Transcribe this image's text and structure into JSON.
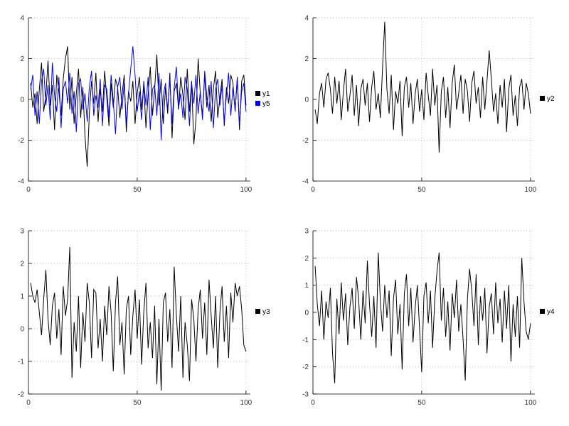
{
  "page": {
    "background": "#ffffff",
    "grid_color": "#bbbbbb",
    "axis_color": "#000000",
    "tick_label_color": "#333333"
  },
  "chart_data": [
    {
      "type": "line",
      "position": "top-left",
      "title": "",
      "xlabel": "",
      "ylabel": "",
      "x_start": 1,
      "x_range": [
        0,
        102
      ],
      "ylim": [
        -4,
        4
      ],
      "x_ticks": [
        0,
        50,
        100
      ],
      "y_ticks": [
        -4,
        -2,
        0,
        2,
        4
      ],
      "grid": true,
      "legend_position": "right",
      "series": [
        {
          "name": "y1",
          "color": "#000000",
          "values": [
            0.8,
            -0.4,
            0.3,
            -1.2,
            0.5,
            1.8,
            -0.6,
            0.2,
            1.9,
            -0.3,
            0.7,
            -1.5,
            1.2,
            0.4,
            -0.8,
            1.0,
            2.0,
            2.6,
            -0.5,
            1.1,
            -1.2,
            0.3,
            1.5,
            -0.9,
            0.6,
            -1.8,
            -3.3,
            -0.7,
            0.9,
            -0.2,
            1.3,
            -1.1,
            0.5,
            -0.6,
            1.4,
            0.1,
            -1.3,
            0.8,
            -0.4,
            1.0,
            0.6,
            -0.9,
            0.2,
            1.2,
            -1.6,
            0.4,
            -0.1,
            0.9,
            -1.2,
            0.3,
            1.1,
            -0.5,
            0.7,
            -1.4,
            0.2,
            1.6,
            -0.8,
            0.5,
            2.2,
            -0.3,
            1.0,
            -1.2,
            0.6,
            -0.7,
            1.3,
            -1.9,
            0.4,
            0.8,
            -0.5,
            1.1,
            0.2,
            -1.0,
            1.5,
            -0.6,
            0.9,
            -2.2,
            -1.0,
            2.0,
            0.3,
            -0.8,
            1.2,
            -0.4,
            0.7,
            -1.1,
            0.5,
            1.4,
            -0.9,
            0.1,
            1.0,
            -1.3,
            0.6,
            -0.2,
            1.2,
            0.8,
            -0.6,
            1.1,
            -1.5,
            0.9,
            1.2,
            -0.3
          ]
        },
        {
          "name": "y5",
          "color": "#0000ff",
          "values": [
            0.5,
            1.2,
            -0.8,
            0.4,
            -1.2,
            0.9,
            1.5,
            -0.3,
            0.7,
            -1.0,
            1.8,
            0.2,
            -0.6,
            1.1,
            -1.4,
            0.5,
            0.9,
            -0.2,
            1.3,
            -0.7,
            0.4,
            -1.6,
            0.8,
            1.0,
            -0.5,
            0.3,
            -1.1,
            0.6,
            1.4,
            -0.8,
            0.2,
            -0.4,
            1.0,
            -1.3,
            0.7,
            0.5,
            -0.9,
            1.2,
            -0.1,
            -1.7,
            0.6,
            1.1,
            -0.5,
            0.8,
            -1.2,
            0.3,
            1.5,
            2.6,
            1.2,
            -0.6,
            0.4,
            -1.0,
            0.9,
            -0.3,
            1.1,
            -1.5,
            0.5,
            0.7,
            -0.8,
            1.3,
            -2.0,
            0.2,
            0.8,
            -0.5,
            1.0,
            -1.2,
            0.6,
            1.6,
            -0.4,
            0.3,
            -0.9,
            1.1,
            0.5,
            -1.3,
            0.8,
            -0.2,
            1.2,
            -0.7,
            0.4,
            -1.0,
            1.4,
            0.1,
            -0.6,
            0.9,
            -1.4,
            0.5,
            1.0,
            -0.3,
            0.7,
            -1.1,
            0.2,
            1.3,
            -0.8,
            0.6,
            -0.5,
            1.0,
            -1.2,
            0.4,
            0.8,
            -0.6
          ]
        }
      ]
    },
    {
      "type": "line",
      "position": "top-right",
      "title": "",
      "xlabel": "",
      "ylabel": "",
      "x_start": 1,
      "x_range": [
        0,
        102
      ],
      "ylim": [
        -4,
        4
      ],
      "x_ticks": [
        0,
        50,
        100
      ],
      "y_ticks": [
        -4,
        -2,
        0,
        2,
        4
      ],
      "grid": true,
      "legend_position": "right",
      "series": [
        {
          "name": "y2",
          "color": "#000000",
          "values": [
            -0.5,
            -1.2,
            0.3,
            0.8,
            -0.4,
            1.0,
            1.3,
            0.5,
            -0.7,
            1.1,
            -0.2,
            0.9,
            -1.0,
            0.4,
            1.5,
            -0.6,
            0.2,
            1.2,
            -0.8,
            0.7,
            -1.3,
            0.5,
            1.0,
            -0.3,
            0.8,
            -1.1,
            0.6,
            1.4,
            -0.5,
            0.3,
            -0.9,
            1.6,
            3.8,
            0.5,
            -0.7,
            1.2,
            -1.5,
            0.4,
            -0.2,
            0.9,
            -1.8,
            0.6,
            1.1,
            -0.4,
            0.8,
            -1.2,
            0.3,
            1.0,
            -0.6,
            0.5,
            -1.0,
            1.3,
            0.2,
            -0.8,
            1.5,
            -0.3,
            0.7,
            -2.6,
            0.4,
            1.1,
            -0.9,
            0.6,
            -1.4,
            0.8,
            1.7,
            -0.5,
            0.3,
            1.2,
            -0.7,
            1.0,
            0.4,
            -1.1,
            0.8,
            1.4,
            -0.2,
            0.6,
            -0.9,
            1.1,
            -0.5,
            0.9,
            2.4,
            1.0,
            -0.6,
            0.3,
            -1.2,
            0.7,
            -0.4,
            1.0,
            -1.6,
            0.5,
            1.2,
            -0.8,
            0.2,
            -1.3,
            0.6,
            1.0,
            -0.5,
            0.8,
            0.3,
            -0.7
          ]
        }
      ]
    },
    {
      "type": "line",
      "position": "bottom-left",
      "title": "",
      "xlabel": "",
      "ylabel": "",
      "x_start": 1,
      "x_range": [
        0,
        102
      ],
      "ylim": [
        -2,
        3
      ],
      "x_ticks": [
        0,
        50,
        100
      ],
      "y_ticks": [
        -2,
        -1,
        0,
        1,
        2,
        3
      ],
      "grid": true,
      "legend_position": "right",
      "series": [
        {
          "name": "y3",
          "color": "#000000",
          "values": [
            1.4,
            1.0,
            0.8,
            1.2,
            0.5,
            -0.2,
            0.9,
            1.8,
            0.3,
            -0.5,
            0.7,
            1.1,
            -0.3,
            0.6,
            -0.8,
            1.3,
            0.4,
            0.9,
            2.5,
            -1.5,
            0.2,
            -0.7,
            1.0,
            -1.2,
            0.5,
            -0.4,
            1.4,
            0.8,
            -0.9,
            1.2,
            1.1,
            -0.6,
            0.3,
            -1.0,
            0.7,
            -0.2,
            1.3,
            0.5,
            -1.3,
            0.8,
            1.6,
            -0.5,
            0.2,
            -1.4,
            0.6,
            1.0,
            -0.8,
            0.4,
            1.2,
            -0.3,
            0.9,
            -1.1,
            0.5,
            1.4,
            -0.6,
            0.2,
            -0.9,
            0.7,
            -1.7,
            0.3,
            -1.9,
            0.8,
            1.1,
            -0.4,
            0.6,
            -1.2,
            1.9,
            0.4,
            -0.7,
            1.0,
            -1.5,
            0.2,
            -0.5,
            -1.6,
            0.9,
            0.3,
            -1.0,
            0.6,
            1.2,
            -0.3,
            0.8,
            -0.8,
            1.5,
            0.4,
            -0.6,
            1.0,
            -1.2,
            0.5,
            1.3,
            -0.4,
            0.7,
            -0.9,
            1.1,
            0.2,
            1.4,
            1.0,
            1.3,
            0.6,
            -0.5,
            -0.7
          ]
        }
      ]
    },
    {
      "type": "line",
      "position": "bottom-right",
      "title": "",
      "xlabel": "",
      "ylabel": "",
      "x_start": 1,
      "x_range": [
        0,
        102
      ],
      "ylim": [
        -3,
        3
      ],
      "x_ticks": [
        0,
        50,
        100
      ],
      "y_ticks": [
        -3,
        -2,
        -1,
        0,
        1,
        2,
        3
      ],
      "grid": true,
      "legend_position": "right",
      "series": [
        {
          "name": "y4",
          "color": "#000000",
          "values": [
            1.7,
            0.3,
            -0.5,
            0.8,
            -1.0,
            0.4,
            -0.2,
            0.9,
            -1.5,
            -2.6,
            0.5,
            -0.8,
            1.1,
            -0.3,
            0.7,
            -1.2,
            0.2,
            0.9,
            -0.6,
            1.3,
            0.5,
            -1.0,
            0.8,
            -0.4,
            1.9,
            0.3,
            -0.9,
            0.6,
            -1.3,
            2.2,
            0.4,
            -0.7,
            1.0,
            -0.2,
            0.8,
            -1.6,
            0.5,
            1.2,
            -0.8,
            0.3,
            -2.1,
            0.7,
            1.4,
            -0.5,
            0.9,
            -1.1,
            0.2,
            1.0,
            -0.6,
            -2.2,
            0.6,
            1.1,
            -0.4,
            0.8,
            -1.3,
            0.5,
            1.5,
            2.2,
            -0.3,
            0.9,
            -0.9,
            0.4,
            -1.4,
            0.7,
            -0.2,
            1.2,
            -0.7,
            0.3,
            -1.0,
            -2.5,
            0.5,
            1.6,
            0.8,
            -0.5,
            1.4,
            -1.2,
            0.6,
            -0.3,
            0.9,
            -1.5,
            0.2,
            0.7,
            -0.8,
            1.1,
            -0.4,
            0.5,
            -1.1,
            0.8,
            -0.6,
            1.0,
            -1.8,
            0.3,
            -0.9,
            0.6,
            -1.3,
            2.0,
            0.4,
            -0.7,
            -1.0,
            -0.4
          ]
        }
      ]
    }
  ]
}
